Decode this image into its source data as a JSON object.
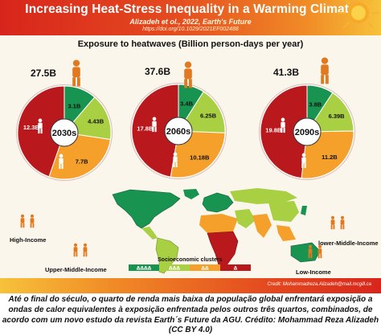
{
  "header": {
    "title": "Increasing Heat-Stress Inequality in a Warming Climate",
    "subtitle": "Alizadeh et ol., 2022, Earth's Future",
    "doi": "https://doi.org/10.1029/2021EF002488"
  },
  "chart_data": {
    "type": "pie",
    "title": "Exposure to heatwaves (Billion person-days per year)",
    "slice_order": [
      "High-Income",
      "Upper-Middle-Income",
      "lower-Middle-Income",
      "Low-Income"
    ],
    "colors": [
      "#199450",
      "#a9cf43",
      "#f5a02a",
      "#b9181c"
    ],
    "charts": [
      {
        "period": "2030s",
        "total": "27.5B",
        "values": [
          3.1,
          4.43,
          7.7,
          12.3
        ],
        "labels": [
          "3.1B",
          "4.43B",
          "7.7B",
          "12.3B"
        ]
      },
      {
        "period": "2060s",
        "total": "37.6B",
        "values": [
          3.4,
          6.25,
          10.18,
          17.8
        ],
        "labels": [
          "3.4B",
          "6.25B",
          "10.18B",
          "17.8B"
        ]
      },
      {
        "period": "2090s",
        "total": "41.3B",
        "values": [
          3.8,
          6.39,
          11.2,
          19.8
        ],
        "labels": [
          "3.8B",
          "6.39B",
          "11.2B",
          "19.8B"
        ]
      }
    ]
  },
  "map": {
    "legend_title": "Socioeconomic clusters",
    "legend_entries": [
      "ᐃᐃᐃᐃ",
      "ᐃᐃᐃ",
      "ᐃᐃ",
      "ᐃ"
    ],
    "legend_colors": [
      "#199450",
      "#a9cf43",
      "#f5a02a",
      "#b9181c"
    ],
    "group_labels": [
      "High-Income",
      "Upper-Middle-Income",
      "lower-Middle-Income",
      "Low-Income"
    ]
  },
  "footer": {
    "credit": "Credit: Mohammadreza.Alizadeh@mail.mcgill.ca"
  },
  "caption": "Até o final do século, o quarto de renda mais baixa da população global enfrentará exposição a ondas de calor equivalentes à exposição enfrentada pelos outros três quartos, combinados, de acordo com um novo estudo da revista Earth´s Future da AGU. Crédito: Mohammad Reza Alizadeh (CC BY 4.0)"
}
